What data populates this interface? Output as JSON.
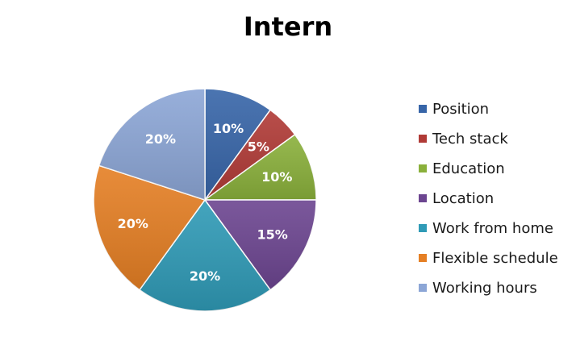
{
  "chart_data": {
    "type": "pie",
    "title": "Intern",
    "legend_position": "right",
    "slices": [
      {
        "name": "Position",
        "value": 10,
        "label": "10%",
        "color": "#3765a8"
      },
      {
        "name": "Tech stack",
        "value": 5,
        "label": "5%",
        "color": "#b03a36"
      },
      {
        "name": "Education",
        "value": 10,
        "label": "10%",
        "color": "#8ab03b"
      },
      {
        "name": "Location",
        "value": 15,
        "label": "15%",
        "color": "#6c4590"
      },
      {
        "name": "Work from home",
        "value": 20,
        "label": "20%",
        "color": "#2f9ab6"
      },
      {
        "name": "Flexible schedule",
        "value": 20,
        "label": "20%",
        "color": "#e57f24"
      },
      {
        "name": "Working hours",
        "value": 20,
        "label": "20%",
        "color": "#8ca6d6"
      }
    ]
  }
}
